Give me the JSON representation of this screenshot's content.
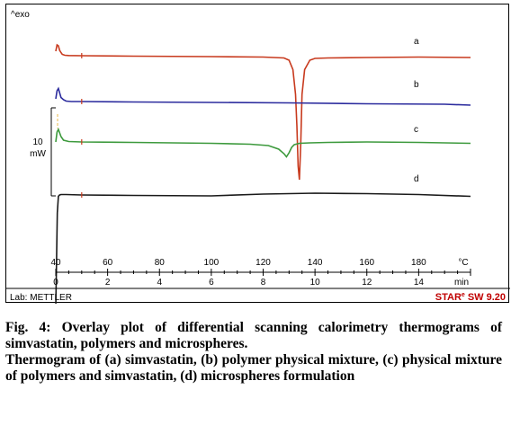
{
  "chart_data": {
    "type": "line",
    "y_axis_header": "^exo",
    "scale_bar_value": "10",
    "scale_bar_unit": "mW",
    "temperature_ticks": [
      "40",
      "60",
      "80",
      "100",
      "120",
      "140",
      "160",
      "180"
    ],
    "temperature_unit": "°C",
    "time_ticks": [
      "0",
      "2",
      "4",
      "6",
      "8",
      "10",
      "12",
      "14"
    ],
    "time_unit": "min",
    "xlim_temperature": [
      40,
      200
    ],
    "series": [
      {
        "name": "a",
        "color": "#c83a1e",
        "x": [
          40.0,
          40.5,
          41.0,
          41.5,
          42.0,
          42.5,
          43.5,
          45,
          50,
          70,
          100,
          120,
          128,
          130,
          131.5,
          132.5,
          133,
          133.5,
          134,
          134.5,
          135,
          136,
          138,
          140,
          145,
          160,
          180,
          200
        ],
        "y": [
          0.6,
          2.0,
          1.8,
          0.8,
          0.3,
          -0.1,
          -0.3,
          -0.35,
          -0.4,
          -0.5,
          -0.6,
          -0.7,
          -0.9,
          -1.4,
          -3.5,
          -9,
          -16,
          -25,
          -28,
          -20,
          -9,
          -3.5,
          -1.4,
          -1.0,
          -0.9,
          -0.8,
          -0.7,
          -0.8
        ]
      },
      {
        "name": "b",
        "color": "#2c2c9e",
        "x": [
          40.0,
          40.5,
          41.0,
          42.0,
          43.0,
          44.0,
          46,
          50,
          70,
          100,
          130,
          160,
          190,
          200
        ],
        "y": [
          0.2,
          2.0,
          2.5,
          0.5,
          0.0,
          -0.3,
          -0.4,
          -0.4,
          -0.5,
          -0.6,
          -0.7,
          -0.9,
          -1.0,
          -1.2
        ]
      },
      {
        "name": "c",
        "color": "#3d9a3d",
        "x": [
          40.0,
          40.5,
          41.0,
          42.0,
          43.0,
          45,
          50,
          70,
          100,
          115,
          122,
          126,
          128,
          129,
          130,
          131,
          132,
          134,
          138,
          145,
          160,
          180,
          200
        ],
        "y": [
          0.0,
          2.2,
          2.8,
          1.2,
          0.4,
          0.1,
          0.0,
          -0.1,
          -0.3,
          -0.5,
          -0.8,
          -1.6,
          -2.6,
          -3.3,
          -2.4,
          -1.2,
          -0.6,
          -0.3,
          -0.2,
          -0.1,
          0.0,
          -0.1,
          -0.3
        ]
      },
      {
        "name": "d",
        "color": "#1a1a1a",
        "x": [
          40.0,
          40.3,
          40.6,
          41.0,
          41.5,
          42.0,
          44,
          50,
          70,
          100,
          120,
          140,
          160,
          180,
          200
        ],
        "y": [
          -25,
          -14,
          -4,
          -0.3,
          0.0,
          0.1,
          0.1,
          0.0,
          -0.1,
          -0.2,
          0.2,
          0.4,
          0.3,
          0.1,
          -0.3
        ]
      }
    ]
  },
  "footer": {
    "lab_label": "Lab: METTLER",
    "software_brand": "STAR",
    "software_sup": "e",
    "software_version": "SW 9.20"
  },
  "caption": {
    "line1": "Fig. 4: Overlay plot of differential scanning calorimetry thermograms of simvastatin, polymers and microspheres.",
    "line2": "Thermogram of (a) simvastatin, (b) polymer physical mixture, (c) physical mixture of polymers and simvastatin, (d) microspheres formulation"
  }
}
